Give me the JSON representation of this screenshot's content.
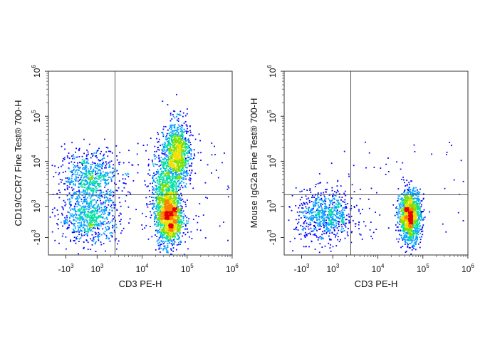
{
  "chart_data": [
    {
      "type": "scatter",
      "subtype": "flow-cytometry-density-dot-plot",
      "xlabel": "CD3 PE-H",
      "ylabel": "CD19/CCR7 Fine Test® 700-H",
      "x_scale": "biexponential",
      "y_scale": "biexponential",
      "x_ticks": [
        {
          "value": -1000,
          "base": "-10",
          "exp": "3"
        },
        {
          "value": 1000,
          "base": "10",
          "exp": "3"
        },
        {
          "value": 10000,
          "base": "10",
          "exp": "4"
        },
        {
          "value": 100000,
          "base": "10",
          "exp": "5"
        },
        {
          "value": 1000000,
          "base": "10",
          "exp": "6"
        }
      ],
      "y_ticks": [
        {
          "value": -1000,
          "base": "-10",
          "exp": "3"
        },
        {
          "value": 1000,
          "base": "10",
          "exp": "3"
        },
        {
          "value": 10000,
          "base": "10",
          "exp": "4"
        },
        {
          "value": 100000,
          "base": "10",
          "exp": "5"
        },
        {
          "value": 1000000,
          "base": "10",
          "exp": "6"
        }
      ],
      "quadrant_gate": {
        "x": 2500,
        "y": 1800
      },
      "populations": [
        {
          "x": 500,
          "y": 4500,
          "n": 620,
          "spread_x": 0.08,
          "spread_y": 0.07
        },
        {
          "x": 500,
          "y": 300,
          "n": 700,
          "spread_x": 0.08,
          "spread_y": 0.07
        },
        {
          "x": 60000,
          "y": 15000,
          "n": 1000,
          "spread_x": 0.035,
          "spread_y": 0.09
        },
        {
          "x": 30000,
          "y": 2500,
          "n": 700,
          "spread_x": 0.035,
          "spread_y": 0.12
        },
        {
          "x": 40000,
          "y": 350,
          "n": 1300,
          "spread_x": 0.035,
          "spread_y": 0.08
        }
      ],
      "background_events": 160
    },
    {
      "type": "scatter",
      "subtype": "flow-cytometry-density-dot-plot",
      "xlabel": "CD3 PE-H",
      "ylabel": "Mouse IgG2a Fine Test® 700-H",
      "x_scale": "biexponential",
      "y_scale": "biexponential",
      "x_ticks": [
        {
          "value": -1000,
          "base": "-10",
          "exp": "3"
        },
        {
          "value": 1000,
          "base": "10",
          "exp": "3"
        },
        {
          "value": 10000,
          "base": "10",
          "exp": "4"
        },
        {
          "value": 100000,
          "base": "10",
          "exp": "5"
        },
        {
          "value": 1000000,
          "base": "10",
          "exp": "6"
        }
      ],
      "y_ticks": [
        {
          "value": -1000,
          "base": "-10",
          "exp": "3"
        },
        {
          "value": 1000,
          "base": "10",
          "exp": "3"
        },
        {
          "value": 10000,
          "base": "10",
          "exp": "4"
        },
        {
          "value": 100000,
          "base": "10",
          "exp": "5"
        },
        {
          "value": 1000000,
          "base": "10",
          "exp": "6"
        }
      ],
      "quadrant_gate": {
        "x": 2500,
        "y": 1800
      },
      "populations": [
        {
          "x": 500,
          "y": 400,
          "n": 750,
          "spread_x": 0.08,
          "spread_y": 0.07
        },
        {
          "x": 50000,
          "y": 400,
          "n": 1350,
          "spread_x": 0.03,
          "spread_y": 0.07
        }
      ],
      "background_events": 70
    }
  ],
  "density_colors": [
    "#0000ff",
    "#00a0ff",
    "#00e0a0",
    "#7ee000",
    "#f0e000",
    "#ff8000",
    "#e60000"
  ]
}
